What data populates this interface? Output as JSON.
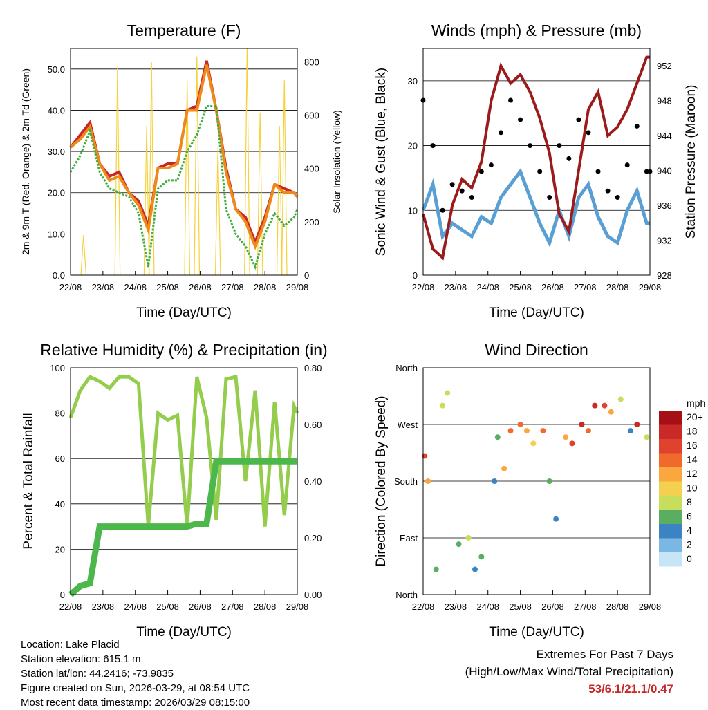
{
  "x_ticks": [
    "22/08",
    "23/08",
    "24/08",
    "25/08",
    "26/08",
    "27/08",
    "28/08",
    "29/08"
  ],
  "chart_data": [
    {
      "type": "line",
      "title": "Temperature (F)",
      "xlabel": "Time (Day/UTC)",
      "ylabel": "2m & 9m T (Red, Orange) & 2m Td (Green)",
      "y2label": "Solar Insolation (Yellow)",
      "ylim": [
        0,
        55
      ],
      "yticks": [
        "0.0",
        "10.0",
        "20.0",
        "30.0",
        "40.0",
        "50.0"
      ],
      "y2lim": [
        0,
        850
      ],
      "y2ticks": [
        "0",
        "200",
        "400",
        "600",
        "800"
      ],
      "x": [
        0,
        0.3,
        0.6,
        0.9,
        1.2,
        1.5,
        1.8,
        2.1,
        2.4,
        2.7,
        3.0,
        3.3,
        3.6,
        3.9,
        4.2,
        4.5,
        4.8,
        5.1,
        5.4,
        5.7,
        6.0,
        6.3,
        6.6,
        6.9,
        7.0
      ],
      "series": [
        {
          "name": "2m T",
          "color": "#c62828",
          "values": [
            31,
            34,
            37,
            27,
            24,
            25,
            20,
            18,
            12,
            26,
            27,
            27,
            40,
            41,
            52,
            40,
            26,
            16,
            14,
            8,
            14,
            22,
            21,
            20,
            19
          ]
        },
        {
          "name": "9m T",
          "color": "#ef8a1a",
          "values": [
            31,
            33,
            36,
            27,
            23,
            24,
            20,
            17,
            11,
            26,
            26,
            27,
            40,
            40,
            51,
            40,
            25,
            16,
            13,
            7,
            13,
            22,
            20,
            20,
            19
          ]
        },
        {
          "name": "2m Td",
          "color": "#3fae3f",
          "values": [
            25,
            29,
            35,
            25,
            21,
            20,
            19,
            15,
            2,
            21,
            23,
            23,
            30,
            34,
            41,
            41,
            16,
            10,
            7,
            2,
            10,
            15,
            12,
            14,
            16
          ]
        }
      ],
      "solar_insolation": {
        "color": "#f5d23a",
        "peaks_x": [
          0.4,
          1.45,
          2.35,
          2.5,
          3.6,
          3.9,
          4.55,
          5.45,
          5.85,
          6.45,
          6.6
        ],
        "peaks_y": [
          150,
          780,
          560,
          800,
          730,
          820,
          480,
          850,
          610,
          560,
          730
        ]
      }
    },
    {
      "type": "scatter",
      "title": "Winds (mph) & Pressure (mb)",
      "xlabel": "Time (Day/UTC)",
      "ylabel": "Sonic Wind & Gust (Blue, Black)",
      "y2label": "Station Pressure (Maroon)",
      "ylim": [
        0,
        35
      ],
      "yticks": [
        "0",
        "10",
        "20",
        "30"
      ],
      "y2lim": [
        928,
        954
      ],
      "y2ticks": [
        "928",
        "932",
        "936",
        "940",
        "944",
        "948",
        "952"
      ],
      "x": [
        0,
        0.3,
        0.6,
        0.9,
        1.2,
        1.5,
        1.8,
        2.1,
        2.4,
        2.7,
        3.0,
        3.3,
        3.6,
        3.9,
        4.2,
        4.5,
        4.8,
        5.1,
        5.4,
        5.7,
        6.0,
        6.3,
        6.6,
        6.9,
        7.0
      ],
      "series": [
        {
          "name": "Sonic Wind",
          "color": "#5a9fd4",
          "values": [
            10,
            14,
            6,
            8,
            7,
            6,
            9,
            8,
            12,
            14,
            16,
            12,
            8,
            5,
            10,
            6,
            12,
            14,
            9,
            6,
            5,
            10,
            13,
            8,
            8
          ]
        },
        {
          "name": "Gust",
          "color": "#000000",
          "values": [
            27,
            20,
            10,
            14,
            13,
            12,
            16,
            17,
            22,
            27,
            24,
            20,
            16,
            12,
            20,
            18,
            24,
            22,
            16,
            13,
            12,
            17,
            23,
            16,
            16
          ]
        },
        {
          "name": "Station Pressure",
          "color": "#9b1b1b",
          "values": [
            935,
            931,
            930,
            936,
            939,
            938,
            941,
            948,
            952,
            950,
            951,
            949,
            946,
            942,
            935,
            933,
            940,
            947,
            949,
            944,
            945,
            947,
            950,
            953,
            953
          ]
        }
      ]
    },
    {
      "type": "line",
      "title": "Relative Humidity (%) & Precipitation (in)",
      "xlabel": "Time (Day/UTC)",
      "ylabel": "Percent & Total Rainfall",
      "ylim": [
        0,
        100
      ],
      "yticks": [
        "0",
        "20",
        "40",
        "60",
        "80",
        "100"
      ],
      "y2lim": [
        0,
        0.8
      ],
      "y2ticks": [
        "0.00",
        "0.20",
        "0.40",
        "0.60",
        "0.80"
      ],
      "x": [
        0,
        0.3,
        0.6,
        0.9,
        1.2,
        1.5,
        1.8,
        2.1,
        2.4,
        2.7,
        3.0,
        3.3,
        3.6,
        3.9,
        4.2,
        4.5,
        4.8,
        5.1,
        5.4,
        5.7,
        6.0,
        6.3,
        6.6,
        6.9,
        7.0
      ],
      "series": [
        {
          "name": "Relative Humidity",
          "color": "#94cc4c",
          "values": [
            78,
            90,
            96,
            94,
            91,
            96,
            96,
            93,
            30,
            80,
            77,
            79,
            30,
            96,
            78,
            33,
            95,
            96,
            50,
            90,
            30,
            85,
            35,
            83,
            80
          ]
        },
        {
          "name": "Total Precipitation",
          "color": "#4cb84c",
          "values": [
            0,
            0.03,
            0.04,
            0.24,
            0.24,
            0.24,
            0.24,
            0.24,
            0.24,
            0.24,
            0.24,
            0.24,
            0.24,
            0.25,
            0.25,
            0.47,
            0.47,
            0.47,
            0.47,
            0.47,
            0.47,
            0.47,
            0.47,
            0.47,
            0.47
          ]
        }
      ]
    },
    {
      "type": "scatter",
      "title": "Wind Direction",
      "xlabel": "Time (Day/UTC)",
      "ylabel": "Direction (Colored By Speed)",
      "ylim": [
        0,
        360
      ],
      "yticks": [
        "North",
        "East",
        "South",
        "West",
        "North"
      ],
      "legend_title": "mph",
      "legend_labels": [
        "20+",
        "18",
        "16",
        "14",
        "12",
        "10",
        "8",
        "6",
        "4",
        "2",
        "0"
      ],
      "legend_colors": [
        "#a50f15",
        "#c92a27",
        "#e0432d",
        "#f06a2d",
        "#f9a73e",
        "#f4d04f",
        "#c8dd5c",
        "#5aae61",
        "#3b83c2",
        "#7ab8e3",
        "#c6e6f7"
      ],
      "x": [
        0.05,
        0.15,
        0.4,
        0.6,
        0.75,
        1.1,
        1.4,
        1.6,
        1.8,
        2.2,
        2.3,
        2.5,
        2.7,
        3.0,
        3.2,
        3.4,
        3.7,
        3.9,
        4.1,
        4.4,
        4.6,
        4.9,
        5.1,
        5.3,
        5.6,
        5.8,
        6.1,
        6.4,
        6.6,
        6.9
      ],
      "y": [
        220,
        180,
        40,
        300,
        320,
        80,
        90,
        40,
        60,
        180,
        250,
        200,
        260,
        270,
        260,
        240,
        260,
        180,
        120,
        250,
        240,
        270,
        260,
        300,
        300,
        290,
        310,
        260,
        270,
        250
      ],
      "speeds": [
        16,
        12,
        6,
        8,
        7,
        6,
        8,
        4,
        6,
        4,
        6,
        12,
        14,
        14,
        12,
        10,
        14,
        6,
        4,
        12,
        16,
        18,
        14,
        18,
        16,
        12,
        8,
        4,
        18,
        8
      ]
    }
  ],
  "footer": {
    "location": "Location: Lake Placid",
    "elevation": "Station elevation: 615.1 m",
    "latlon": "Station lat/lon: 44.2416; -73.9835",
    "created": "Figure created on Sun, 2026-03-29, at 08:54 UTC",
    "timestamp": "Most recent data timestamp: 2026/03/29 08:15:00",
    "extremes_title": "Extremes For Past 7 Days",
    "extremes_legend": "(High/Low/Max Wind/Total Precipitation)",
    "extremes_value": "53/6.1/21.1/0.47"
  }
}
